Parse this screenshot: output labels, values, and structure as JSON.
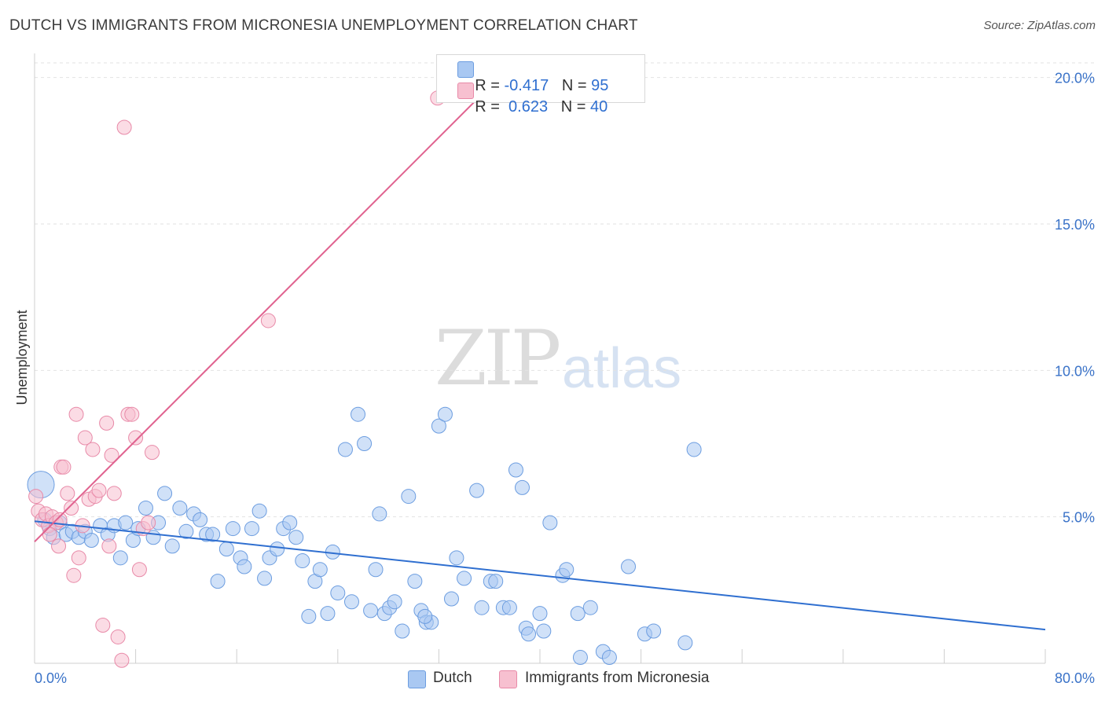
{
  "title": "DUTCH VS IMMIGRANTS FROM MICRONESIA UNEMPLOYMENT CORRELATION CHART",
  "source": "Source: ZipAtlas.com",
  "watermark": {
    "zip": "ZIP",
    "atlas": "atlas"
  },
  "legend": {
    "r_label": "R =",
    "n_label": "N =",
    "rows": [
      {
        "series": "Dutch",
        "r": "-0.417",
        "n": "95",
        "color": "#a9c8f2",
        "border": "#6c9de0"
      },
      {
        "series": "Immigrants from Micronesia",
        "r": "0.623",
        "n": "40",
        "color": "#f7c0d0",
        "border": "#e88aa8"
      }
    ]
  },
  "chart_data": {
    "type": "scatter",
    "title": "DUTCH VS IMMIGRANTS FROM MICRONESIA UNEMPLOYMENT CORRELATION CHART",
    "xlabel": "",
    "ylabel": "Unemployment",
    "xlim": [
      0,
      80
    ],
    "ylim": [
      0,
      20.5
    ],
    "x_tick_labels": [
      "0.0%",
      "80.0%"
    ],
    "y_ticks": [
      5,
      10,
      15,
      20
    ],
    "y_tick_labels": [
      "5.0%",
      "10.0%",
      "15.0%",
      "20.0%"
    ],
    "grid": true,
    "legend_placement": "bottom-center",
    "series": [
      {
        "name": "Dutch",
        "color": "#a9c8f2",
        "stroke": "#6c9de0",
        "trend": {
          "x": [
            0,
            80
          ],
          "y": [
            4.85,
            1.15
          ],
          "color": "#2f6fd0"
        },
        "points": [
          [
            0.5,
            6.1
          ],
          [
            0.8,
            4.9
          ],
          [
            1.2,
            4.6
          ],
          [
            1.5,
            4.3
          ],
          [
            2.0,
            4.8
          ],
          [
            2.5,
            4.4
          ],
          [
            3.0,
            4.5
          ],
          [
            3.5,
            4.3
          ],
          [
            4.0,
            4.5
          ],
          [
            4.5,
            4.2
          ],
          [
            5.2,
            4.7
          ],
          [
            5.8,
            4.4
          ],
          [
            6.3,
            4.7
          ],
          [
            6.8,
            3.6
          ],
          [
            7.2,
            4.8
          ],
          [
            7.8,
            4.2
          ],
          [
            8.2,
            4.6
          ],
          [
            8.8,
            5.3
          ],
          [
            9.4,
            4.3
          ],
          [
            9.8,
            4.8
          ],
          [
            10.3,
            5.8
          ],
          [
            10.9,
            4.0
          ],
          [
            11.5,
            5.3
          ],
          [
            12.0,
            4.5
          ],
          [
            12.6,
            5.1
          ],
          [
            13.1,
            4.9
          ],
          [
            13.6,
            4.4
          ],
          [
            14.1,
            4.4
          ],
          [
            14.5,
            2.8
          ],
          [
            15.2,
            3.9
          ],
          [
            15.7,
            4.6
          ],
          [
            16.3,
            3.6
          ],
          [
            16.6,
            3.3
          ],
          [
            17.2,
            4.6
          ],
          [
            17.8,
            5.2
          ],
          [
            18.2,
            2.9
          ],
          [
            18.6,
            3.6
          ],
          [
            19.2,
            3.9
          ],
          [
            19.7,
            4.6
          ],
          [
            20.2,
            4.8
          ],
          [
            20.7,
            4.3
          ],
          [
            21.2,
            3.5
          ],
          [
            21.7,
            1.6
          ],
          [
            22.2,
            2.8
          ],
          [
            22.6,
            3.2
          ],
          [
            23.2,
            1.7
          ],
          [
            23.6,
            3.8
          ],
          [
            24.0,
            2.4
          ],
          [
            24.6,
            7.3
          ],
          [
            25.1,
            2.1
          ],
          [
            25.6,
            8.5
          ],
          [
            26.1,
            7.5
          ],
          [
            26.6,
            1.8
          ],
          [
            27.0,
            3.2
          ],
          [
            27.3,
            5.1
          ],
          [
            27.7,
            1.7
          ],
          [
            28.1,
            1.9
          ],
          [
            28.5,
            2.1
          ],
          [
            29.1,
            1.1
          ],
          [
            29.6,
            5.7
          ],
          [
            30.1,
            2.8
          ],
          [
            30.6,
            1.8
          ],
          [
            31.0,
            1.4
          ],
          [
            31.4,
            1.4
          ],
          [
            32.0,
            8.1
          ],
          [
            32.5,
            8.5
          ],
          [
            33.0,
            2.2
          ],
          [
            33.4,
            3.6
          ],
          [
            34.0,
            2.9
          ],
          [
            35.0,
            5.9
          ],
          [
            35.4,
            1.9
          ],
          [
            36.1,
            2.8
          ],
          [
            36.5,
            2.8
          ],
          [
            37.1,
            1.9
          ],
          [
            37.6,
            1.9
          ],
          [
            38.1,
            6.6
          ],
          [
            38.6,
            6.0
          ],
          [
            38.9,
            1.2
          ],
          [
            39.1,
            1.0
          ],
          [
            40.0,
            1.7
          ],
          [
            40.3,
            1.1
          ],
          [
            40.8,
            4.8
          ],
          [
            41.8,
            3.0
          ],
          [
            42.1,
            3.2
          ],
          [
            43.0,
            1.7
          ],
          [
            44.0,
            1.9
          ],
          [
            45.0,
            0.4
          ],
          [
            45.5,
            0.2
          ],
          [
            47.0,
            3.3
          ],
          [
            48.3,
            1.0
          ],
          [
            49.0,
            1.1
          ],
          [
            51.5,
            0.7
          ],
          [
            52.2,
            7.3
          ],
          [
            43.2,
            0.2
          ],
          [
            30.9,
            1.6
          ]
        ]
      },
      {
        "name": "Immigrants from Micronesia",
        "color": "#f7c0d0",
        "stroke": "#e88aa8",
        "trend": {
          "x": [
            0,
            37.9
          ],
          "y": [
            4.15,
            20.5
          ],
          "color": "#e0628f"
        },
        "points": [
          [
            0.1,
            5.7
          ],
          [
            0.3,
            5.2
          ],
          [
            0.6,
            4.9
          ],
          [
            0.9,
            5.1
          ],
          [
            1.1,
            4.7
          ],
          [
            1.4,
            5.0
          ],
          [
            1.7,
            4.8
          ],
          [
            1.9,
            4.0
          ],
          [
            2.1,
            6.7
          ],
          [
            2.3,
            6.7
          ],
          [
            2.6,
            5.8
          ],
          [
            2.9,
            5.3
          ],
          [
            3.1,
            3.0
          ],
          [
            3.3,
            8.5
          ],
          [
            3.5,
            3.6
          ],
          [
            3.8,
            4.7
          ],
          [
            4.0,
            7.7
          ],
          [
            4.3,
            5.6
          ],
          [
            4.6,
            7.3
          ],
          [
            4.8,
            5.7
          ],
          [
            5.1,
            5.9
          ],
          [
            5.4,
            1.3
          ],
          [
            5.7,
            8.2
          ],
          [
            5.9,
            4.0
          ],
          [
            6.1,
            7.1
          ],
          [
            6.3,
            5.8
          ],
          [
            6.6,
            0.9
          ],
          [
            6.9,
            0.1
          ],
          [
            7.1,
            18.3
          ],
          [
            7.4,
            8.5
          ],
          [
            7.7,
            8.5
          ],
          [
            8.0,
            7.7
          ],
          [
            8.3,
            3.2
          ],
          [
            8.6,
            4.6
          ],
          [
            9.0,
            4.8
          ],
          [
            9.3,
            7.2
          ],
          [
            18.5,
            11.7
          ],
          [
            31.9,
            19.3
          ],
          [
            1.2,
            4.4
          ],
          [
            2.0,
            4.9
          ]
        ]
      }
    ]
  }
}
